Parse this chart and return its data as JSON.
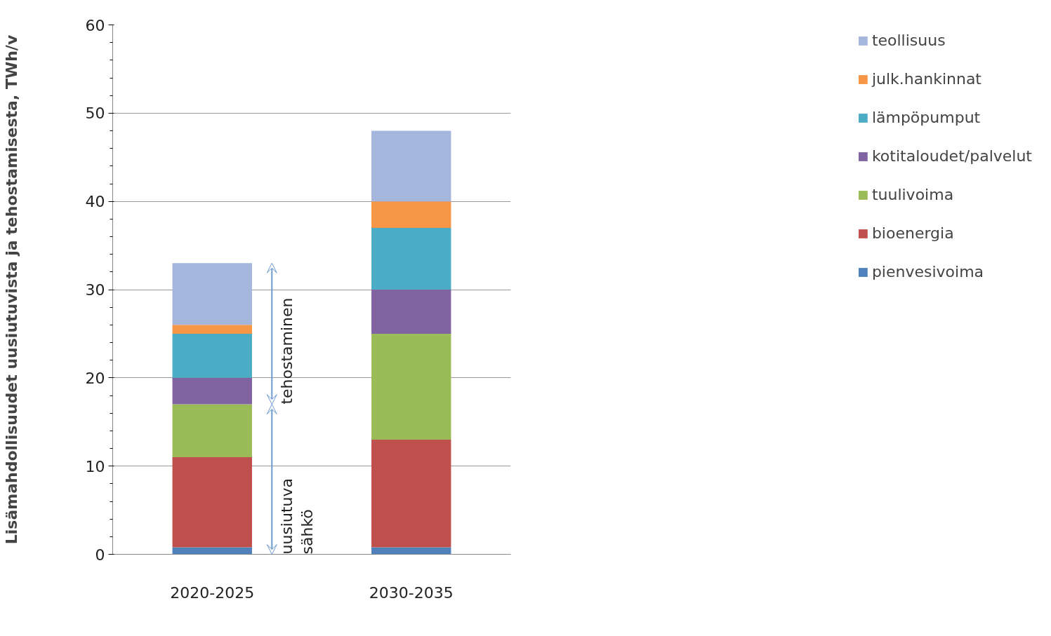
{
  "chart_data": {
    "type": "bar",
    "stacked": true,
    "ylabel": "Lisämahdollisuudet uusiutuvista ja tehostamisesta, TWh/v",
    "categories": [
      "2020-2025",
      "2030-2035"
    ],
    "series": [
      {
        "name": "pienvesivoima",
        "color": "#4f81bd",
        "values": [
          0.8,
          0.8
        ]
      },
      {
        "name": "bioenergia",
        "color": "#c0504d",
        "values": [
          10.2,
          12.2
        ]
      },
      {
        "name": "tuulivoima",
        "color": "#9bbb59",
        "values": [
          6,
          12
        ]
      },
      {
        "name": "kotitaloudet/palvelut",
        "color": "#8064a2",
        "values": [
          3,
          5
        ]
      },
      {
        "name": "lämpöpumput",
        "color": "#4bacc6",
        "values": [
          5,
          7
        ]
      },
      {
        "name": "julk.hankinnat",
        "color": "#f79646",
        "values": [
          1,
          3
        ]
      },
      {
        "name": "teollisuus",
        "color": "#a5b6dd",
        "values": [
          7,
          8
        ]
      }
    ],
    "ylim": [
      0,
      60
    ],
    "yticks": [
      0,
      10,
      20,
      30,
      40,
      50,
      60
    ],
    "grid": "y",
    "legend": "right",
    "annotations": [
      "tehostaminen",
      "uusiutuva sähkö"
    ]
  }
}
